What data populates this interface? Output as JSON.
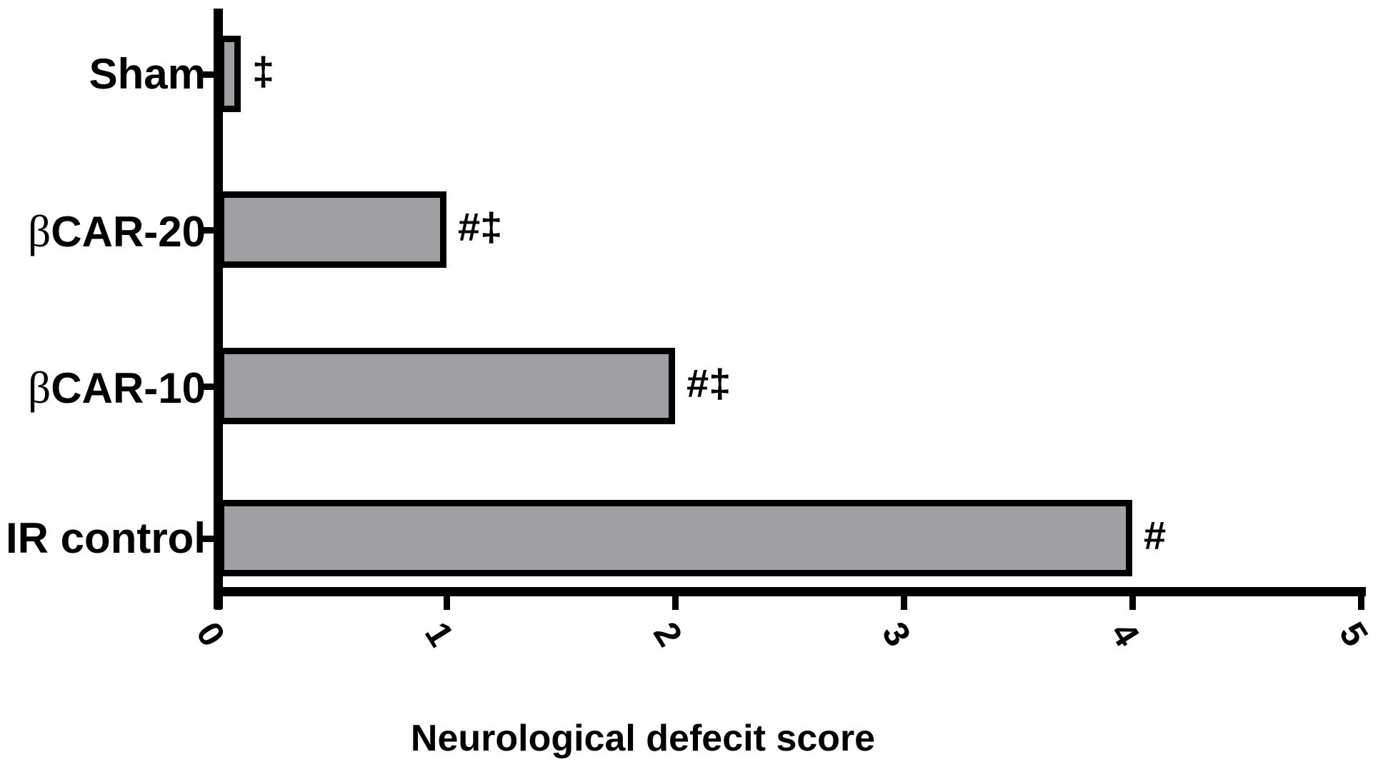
{
  "chart_data": {
    "type": "bar",
    "orientation": "horizontal",
    "title": "",
    "xlabel": "Neurological defecit score",
    "ylabel": "",
    "categories": [
      "Sham",
      "βCAR-20",
      "βCAR-10",
      "IR control"
    ],
    "values": [
      0.1,
      1,
      2,
      4
    ],
    "annotations": [
      "‡",
      "#‡",
      "#‡",
      "#"
    ],
    "x_ticks": [
      "0",
      "1",
      "2",
      "3",
      "4",
      "5"
    ],
    "xlim": [
      0,
      5
    ],
    "grid": false,
    "legend_position": "none",
    "x_tick_label_rotation_deg": 58,
    "colors": {
      "bar_fill": "#a0a0a4",
      "bar_border": "#000000",
      "axis": "#000000",
      "text": "#000000",
      "background": "#ffffff"
    }
  }
}
